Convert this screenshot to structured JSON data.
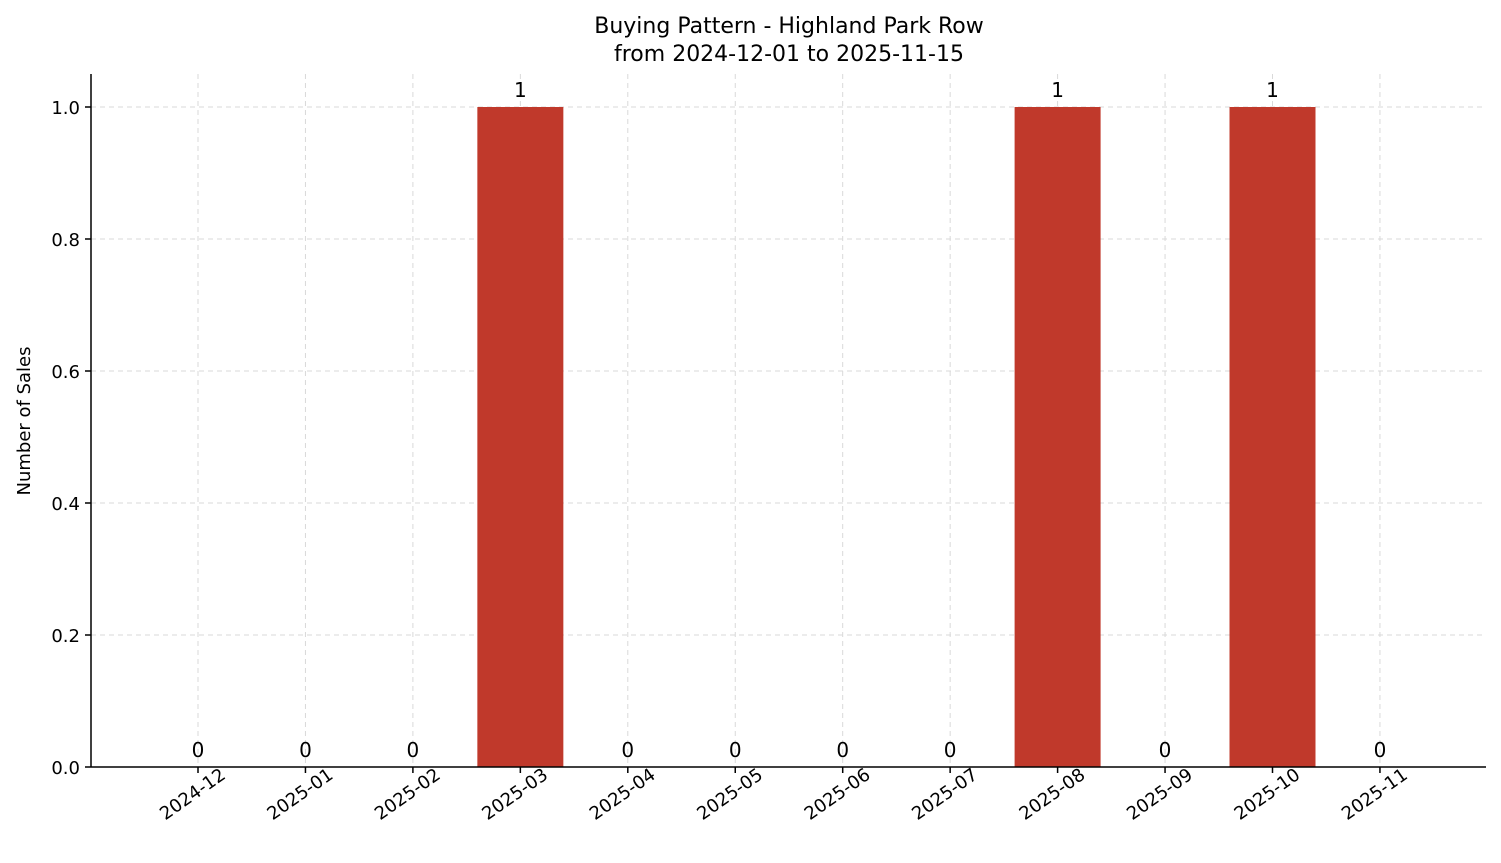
{
  "chart_data": {
    "type": "bar",
    "title": "Buying Pattern - Highland Park Row",
    "subtitle": "from 2024-12-01 to 2025-11-15",
    "xlabel": "",
    "ylabel": "Number of Sales",
    "categories": [
      "2024-12",
      "2025-01",
      "2025-02",
      "2025-03",
      "2025-04",
      "2025-05",
      "2025-06",
      "2025-07",
      "2025-08",
      "2025-09",
      "2025-10",
      "2025-11"
    ],
    "values": [
      0,
      0,
      0,
      1,
      0,
      0,
      0,
      0,
      1,
      0,
      1,
      0
    ],
    "data_labels": [
      "0",
      "0",
      "0",
      "1",
      "0",
      "0",
      "0",
      "0",
      "1",
      "0",
      "1",
      "0"
    ],
    "ylim": [
      0,
      1.05
    ],
    "yticks": [
      "0.0",
      "0.2",
      "0.4",
      "0.6",
      "0.8",
      "1.0"
    ],
    "grid": true,
    "bar_color": "#c0392b"
  }
}
